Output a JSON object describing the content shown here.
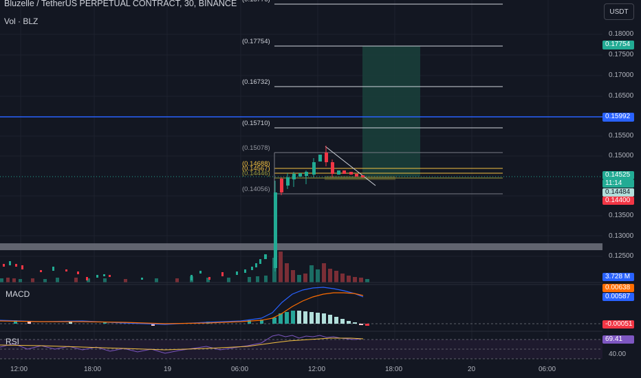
{
  "header": {
    "title": "Bluzelle / TetherUS PERPETUAL CONTRACT, 30, BINANCE",
    "volume_indicator": "Vol · BLZ",
    "currency_button": "USDT"
  },
  "price_axis": {
    "labels": [
      "0.18000",
      "0.17500",
      "0.17000",
      "0.16500",
      "0.15500",
      "0.15000",
      "0.13500",
      "0.13000",
      "0.12500"
    ],
    "badges": [
      {
        "value": "0.17754",
        "color": "#22ab94"
      },
      {
        "value": "0.15992",
        "color": "#2962ff"
      },
      {
        "value": "0.14525",
        "color": "#22ab94"
      },
      {
        "value": "11:14",
        "color": "#22ab94"
      },
      {
        "value": "0.14484",
        "color": "#b2dfdb"
      },
      {
        "value": "0.14400",
        "color": "#f23645"
      },
      {
        "value": "3.728 M",
        "color": "#2962ff"
      },
      {
        "value": "0.00638",
        "color": "#ff6d00"
      },
      {
        "value": "0.00587",
        "color": "#2962ff"
      },
      {
        "value": "-0.00051",
        "color": "#f23645"
      },
      {
        "value": "69.41",
        "color": "#7e57c2"
      }
    ],
    "rsi_tick": "40.00"
  },
  "fib_levels": [
    {
      "label": "(0.17754)",
      "color": "#d1d4dc"
    },
    {
      "label": "(0.16732)",
      "color": "#d1d4dc"
    },
    {
      "label": "(0.15710)",
      "color": "#d1d4dc"
    },
    {
      "label": "(0.15078)",
      "color": "#9598a1"
    },
    {
      "label": "(0.14688)",
      "color": "#f5c242"
    },
    {
      "label": "(0.14567)",
      "color": "#f5c242"
    },
    {
      "label": "(0.14446)",
      "color": "#9c9c3c"
    },
    {
      "label": "(0.14056)",
      "color": "#9598a1"
    }
  ],
  "panes": {
    "macd_label": "MACD",
    "rsi_label": "RSI"
  },
  "time_axis": [
    "12:00",
    "18:00",
    "19",
    "06:00",
    "12:00",
    "18:00",
    "20",
    "06:00"
  ]
}
